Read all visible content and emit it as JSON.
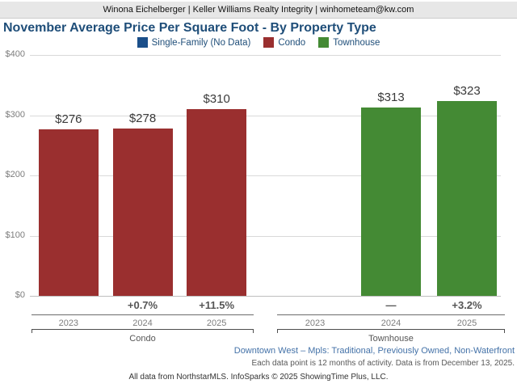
{
  "header": {
    "agent_line": "Winona Eichelberger | Keller Williams Realty Integrity | winhometeam@kw.com"
  },
  "title": "November Average Price Per Square Foot - By Property Type",
  "legend": [
    {
      "id": "single-family",
      "label": "Single-Family (No Data)",
      "color": "#1b4f8a"
    },
    {
      "id": "condo",
      "label": "Condo",
      "color": "#9a2f2f"
    },
    {
      "id": "townhouse",
      "label": "Townhouse",
      "color": "#448a34"
    }
  ],
  "chart_data": {
    "type": "bar",
    "title": "November Average Price Per Square Foot - By Property Type",
    "ylabel": "Average Price Per Square Foot",
    "ylim": [
      0,
      400
    ],
    "y_tick_values": [
      0,
      100,
      200,
      300,
      400
    ],
    "y_tick_labels": [
      "$0",
      "$100",
      "$200",
      "$300",
      "$400"
    ],
    "grid": true,
    "legend_position": "top",
    "series_with_no_data": [
      "Single-Family"
    ],
    "categories": [
      "2023",
      "2024",
      "2025"
    ],
    "groups": [
      {
        "name": "Condo",
        "color": "#9a2f2f",
        "years": [
          "2023",
          "2024",
          "2025"
        ],
        "values": [
          276,
          278,
          310
        ],
        "value_labels": [
          "$276",
          "$278",
          "$310"
        ],
        "pct_change": [
          "",
          "+0.7%",
          "+11.5%"
        ]
      },
      {
        "name": "Townhouse",
        "color": "#448a34",
        "years": [
          "2023",
          "2024",
          "2025"
        ],
        "values": [
          null,
          313,
          323
        ],
        "value_labels": [
          "",
          "$313",
          "$323"
        ],
        "pct_change": [
          "",
          "—",
          "+3.2%"
        ]
      }
    ]
  },
  "footer": {
    "market_line": "Downtown West – Mpls: Traditional, Previously Owned, Non-Waterfront",
    "data_note": "Each data point is 12 months of activity. Data is from December 13, 2025.",
    "attribution": "All data from NorthstarMLS. InfoSparks © 2025 ShowingTime Plus, LLC."
  }
}
